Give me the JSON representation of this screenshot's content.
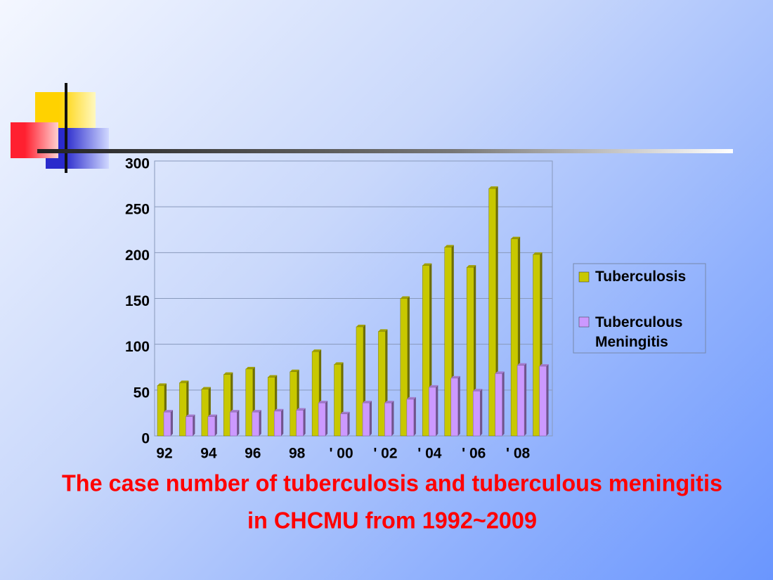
{
  "chart_data": {
    "type": "bar",
    "title": [
      "The case number of tuberculosis and tuberculous meningitis",
      "in CHCMU from 1992~2009"
    ],
    "categories": [
      "92",
      null,
      "94",
      null,
      "96",
      null,
      "98",
      null,
      "' 00",
      null,
      "' 02",
      null,
      "' 04",
      null,
      "' 06",
      null,
      "' 08",
      null
    ],
    "series": [
      {
        "name": "Tuberculosis",
        "color": "#c8c800",
        "values": [
          55,
          58,
          51,
          67,
          73,
          64,
          70,
          92,
          78,
          119,
          114,
          150,
          186,
          206,
          184,
          270,
          215,
          198
        ]
      },
      {
        "name": "Tuberculous Meningitis",
        "color": "#cc99ff",
        "values": [
          26,
          21,
          21,
          26,
          26,
          27,
          28,
          36,
          24,
          36,
          36,
          40,
          53,
          63,
          49,
          68,
          77,
          76
        ]
      }
    ],
    "ylim": [
      0,
      300
    ],
    "yticks": [
      0,
      50,
      100,
      150,
      200,
      250,
      300
    ],
    "grid": true
  }
}
